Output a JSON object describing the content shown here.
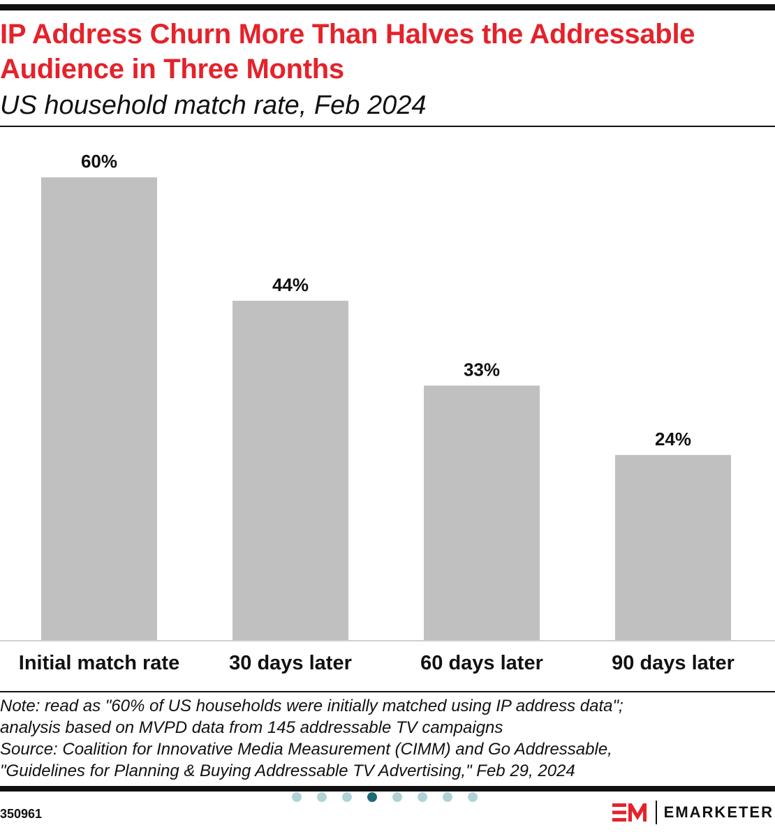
{
  "header": {
    "title": "IP Address Churn More Than Halves the Addressable Audience in Three Months",
    "subtitle": "US household match rate, Feb 2024"
  },
  "chart_data": {
    "type": "bar",
    "categories": [
      "Initial match rate",
      "30 days later",
      "60 days later",
      "90 days later"
    ],
    "values": [
      60,
      44,
      33,
      24
    ],
    "value_labels": [
      "60%",
      "44%",
      "33%",
      "24%"
    ],
    "ylim": [
      0,
      62
    ],
    "grid": false,
    "bar_color": "#c0c0c0"
  },
  "footer": {
    "note_lines": [
      "Note: read as \"60% of US households were initially matched using IP address data\";",
      "analysis based on MVPD data from 145 addressable TV campaigns",
      "Source: Coalition for Innovative Media Measurement (CIMM) and Go Addressable,",
      "\"Guidelines for Planning & Buying Addressable TV Advertising,\" Feb 29, 2024"
    ],
    "chart_id": "350961",
    "brand_name": "EMARKETER",
    "brand_color": "#e4222b",
    "pagination": {
      "total": 8,
      "active_index": 3
    }
  }
}
